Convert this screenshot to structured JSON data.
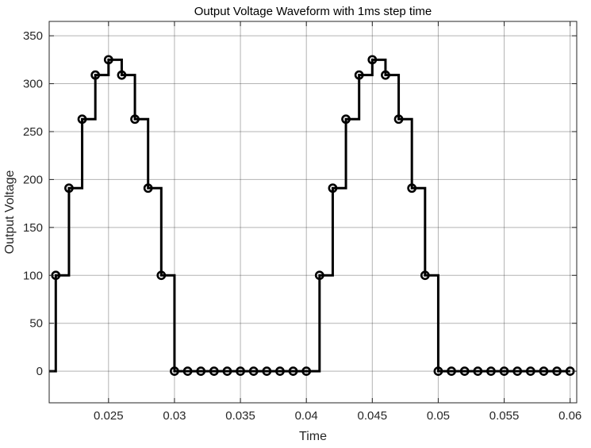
{
  "chart_data": {
    "type": "line",
    "title": "Output Voltage Waveform with 1ms step time",
    "xlabel": "Time",
    "ylabel": "Output Voltage",
    "xlim": [
      0.0205,
      0.0605
    ],
    "ylim": [
      -33,
      365
    ],
    "grid": true,
    "x_ticks": [
      0.025,
      0.03,
      0.035,
      0.04,
      0.045,
      0.05,
      0.055,
      0.06
    ],
    "x_tick_labels": [
      "0.025",
      "0.03",
      "0.035",
      "0.04",
      "0.045",
      "0.05",
      "0.055",
      "0.06"
    ],
    "y_ticks": [
      0,
      50,
      100,
      150,
      200,
      250,
      300,
      350
    ],
    "y_tick_labels": [
      "0",
      "50",
      "100",
      "150",
      "200",
      "250",
      "300",
      "350"
    ],
    "series": [
      {
        "style": "stairs-with-circle-markers",
        "color": "#000000",
        "x": [
          0.021,
          0.022,
          0.023,
          0.024,
          0.025,
          0.026,
          0.027,
          0.028,
          0.029,
          0.03,
          0.031,
          0.032,
          0.033,
          0.034,
          0.035,
          0.036,
          0.037,
          0.038,
          0.039,
          0.04,
          0.041,
          0.042,
          0.043,
          0.044,
          0.045,
          0.046,
          0.047,
          0.048,
          0.049,
          0.05,
          0.051,
          0.052,
          0.053,
          0.054,
          0.055,
          0.056,
          0.057,
          0.058,
          0.059,
          0.06
        ],
        "y": [
          100,
          191,
          263,
          309,
          325,
          309,
          263,
          191,
          100,
          0,
          0,
          0,
          0,
          0,
          0,
          0,
          0,
          0,
          0,
          0,
          100,
          191,
          263,
          309,
          325,
          309,
          263,
          191,
          100,
          0,
          0,
          0,
          0,
          0,
          0,
          0,
          0,
          0,
          0,
          0
        ]
      }
    ]
  }
}
